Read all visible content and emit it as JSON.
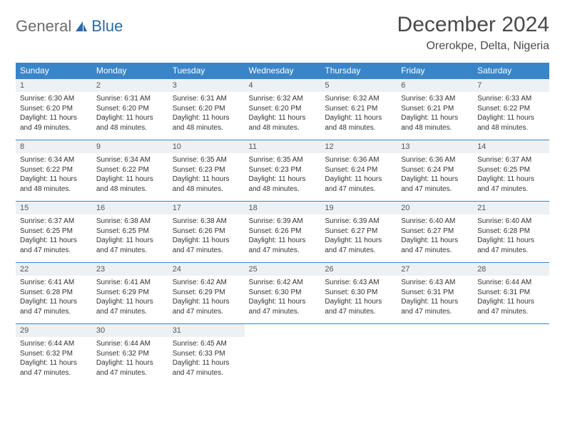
{
  "logo": {
    "word1": "General",
    "word2": "Blue"
  },
  "title": "December 2024",
  "location": "Orerokpe, Delta, Nigeria",
  "colors": {
    "header_bg": "#3a85c7",
    "header_fg": "#ffffff",
    "daynum_bg": "#eef1f3",
    "border": "#3a85c7",
    "logo_gray": "#6b6b6b",
    "logo_blue": "#2b6aa8"
  },
  "dayHeaders": [
    "Sunday",
    "Monday",
    "Tuesday",
    "Wednesday",
    "Thursday",
    "Friday",
    "Saturday"
  ],
  "weeks": [
    [
      {
        "n": "1",
        "sr": "6:30 AM",
        "ss": "6:20 PM",
        "dl": "11 hours and 49 minutes."
      },
      {
        "n": "2",
        "sr": "6:31 AM",
        "ss": "6:20 PM",
        "dl": "11 hours and 48 minutes."
      },
      {
        "n": "3",
        "sr": "6:31 AM",
        "ss": "6:20 PM",
        "dl": "11 hours and 48 minutes."
      },
      {
        "n": "4",
        "sr": "6:32 AM",
        "ss": "6:20 PM",
        "dl": "11 hours and 48 minutes."
      },
      {
        "n": "5",
        "sr": "6:32 AM",
        "ss": "6:21 PM",
        "dl": "11 hours and 48 minutes."
      },
      {
        "n": "6",
        "sr": "6:33 AM",
        "ss": "6:21 PM",
        "dl": "11 hours and 48 minutes."
      },
      {
        "n": "7",
        "sr": "6:33 AM",
        "ss": "6:22 PM",
        "dl": "11 hours and 48 minutes."
      }
    ],
    [
      {
        "n": "8",
        "sr": "6:34 AM",
        "ss": "6:22 PM",
        "dl": "11 hours and 48 minutes."
      },
      {
        "n": "9",
        "sr": "6:34 AM",
        "ss": "6:22 PM",
        "dl": "11 hours and 48 minutes."
      },
      {
        "n": "10",
        "sr": "6:35 AM",
        "ss": "6:23 PM",
        "dl": "11 hours and 48 minutes."
      },
      {
        "n": "11",
        "sr": "6:35 AM",
        "ss": "6:23 PM",
        "dl": "11 hours and 48 minutes."
      },
      {
        "n": "12",
        "sr": "6:36 AM",
        "ss": "6:24 PM",
        "dl": "11 hours and 47 minutes."
      },
      {
        "n": "13",
        "sr": "6:36 AM",
        "ss": "6:24 PM",
        "dl": "11 hours and 47 minutes."
      },
      {
        "n": "14",
        "sr": "6:37 AM",
        "ss": "6:25 PM",
        "dl": "11 hours and 47 minutes."
      }
    ],
    [
      {
        "n": "15",
        "sr": "6:37 AM",
        "ss": "6:25 PM",
        "dl": "11 hours and 47 minutes."
      },
      {
        "n": "16",
        "sr": "6:38 AM",
        "ss": "6:25 PM",
        "dl": "11 hours and 47 minutes."
      },
      {
        "n": "17",
        "sr": "6:38 AM",
        "ss": "6:26 PM",
        "dl": "11 hours and 47 minutes."
      },
      {
        "n": "18",
        "sr": "6:39 AM",
        "ss": "6:26 PM",
        "dl": "11 hours and 47 minutes."
      },
      {
        "n": "19",
        "sr": "6:39 AM",
        "ss": "6:27 PM",
        "dl": "11 hours and 47 minutes."
      },
      {
        "n": "20",
        "sr": "6:40 AM",
        "ss": "6:27 PM",
        "dl": "11 hours and 47 minutes."
      },
      {
        "n": "21",
        "sr": "6:40 AM",
        "ss": "6:28 PM",
        "dl": "11 hours and 47 minutes."
      }
    ],
    [
      {
        "n": "22",
        "sr": "6:41 AM",
        "ss": "6:28 PM",
        "dl": "11 hours and 47 minutes."
      },
      {
        "n": "23",
        "sr": "6:41 AM",
        "ss": "6:29 PM",
        "dl": "11 hours and 47 minutes."
      },
      {
        "n": "24",
        "sr": "6:42 AM",
        "ss": "6:29 PM",
        "dl": "11 hours and 47 minutes."
      },
      {
        "n": "25",
        "sr": "6:42 AM",
        "ss": "6:30 PM",
        "dl": "11 hours and 47 minutes."
      },
      {
        "n": "26",
        "sr": "6:43 AM",
        "ss": "6:30 PM",
        "dl": "11 hours and 47 minutes."
      },
      {
        "n": "27",
        "sr": "6:43 AM",
        "ss": "6:31 PM",
        "dl": "11 hours and 47 minutes."
      },
      {
        "n": "28",
        "sr": "6:44 AM",
        "ss": "6:31 PM",
        "dl": "11 hours and 47 minutes."
      }
    ],
    [
      {
        "n": "29",
        "sr": "6:44 AM",
        "ss": "6:32 PM",
        "dl": "11 hours and 47 minutes."
      },
      {
        "n": "30",
        "sr": "6:44 AM",
        "ss": "6:32 PM",
        "dl": "11 hours and 47 minutes."
      },
      {
        "n": "31",
        "sr": "6:45 AM",
        "ss": "6:33 PM",
        "dl": "11 hours and 47 minutes."
      },
      null,
      null,
      null,
      null
    ]
  ],
  "labels": {
    "sunrise": "Sunrise:",
    "sunset": "Sunset:",
    "daylight": "Daylight:"
  }
}
